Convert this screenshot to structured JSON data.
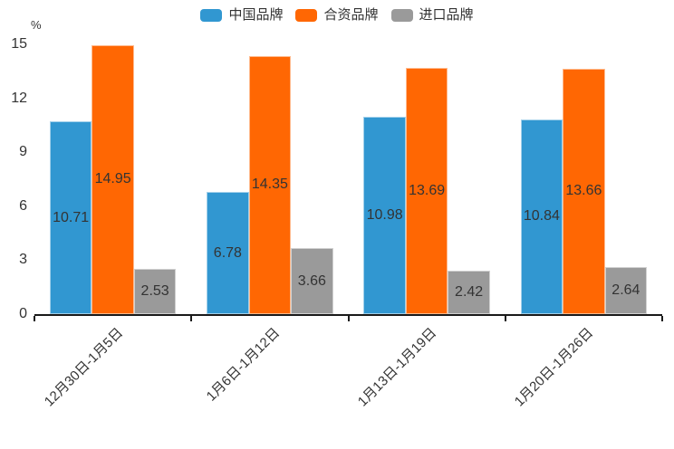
{
  "chart_data": {
    "type": "bar",
    "title": "",
    "ylabel": "%",
    "xlabel": "",
    "ylim": [
      0,
      15
    ],
    "yticks": [
      0,
      3,
      6,
      9,
      12,
      15
    ],
    "grid": false,
    "legend_position": "top",
    "value_labels": "inside",
    "value_label_color": "#333333",
    "axis_color": "#1a1a1a",
    "categories": [
      "12月30日-1月5日",
      "1月6日-1月12日",
      "1月13日-1月19日",
      "1月20日-1月26日"
    ],
    "series": [
      {
        "name": "中国品牌",
        "color": "#3197D1",
        "values": [
          10.71,
          6.78,
          10.98,
          10.84
        ]
      },
      {
        "name": "合资品牌",
        "color": "#FF6703",
        "values": [
          14.95,
          14.35,
          13.69,
          13.66
        ]
      },
      {
        "name": "进口品牌",
        "color": "#9A9A9A",
        "values": [
          2.53,
          3.66,
          2.42,
          2.64
        ]
      }
    ]
  }
}
